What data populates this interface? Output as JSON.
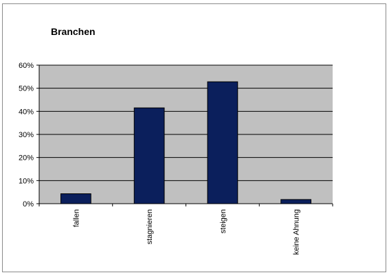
{
  "chart_data": {
    "type": "bar",
    "title": "Branchen",
    "xlabel": "",
    "ylabel": "",
    "categories": [
      "fallen",
      "stagnieren",
      "steigen",
      "keine Ahnung"
    ],
    "values": [
      4.3,
      41.5,
      52.8,
      1.8
    ],
    "ylim": [
      0,
      60
    ],
    "yticks": [
      0,
      10,
      20,
      30,
      40,
      50,
      60
    ],
    "ytick_labels": [
      "0%",
      "10%",
      "20%",
      "30%",
      "40%",
      "50%",
      "60%"
    ],
    "grid": true,
    "legend": "none",
    "bar_color": "#0b1f5c",
    "plot_background": "#c0c0c0"
  }
}
